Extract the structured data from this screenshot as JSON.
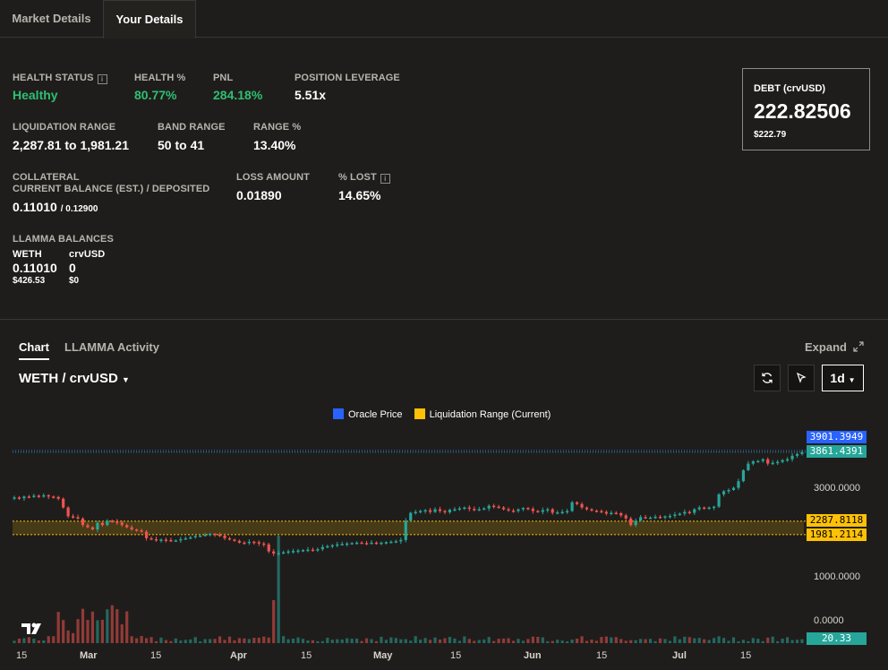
{
  "tabs": [
    "Market Details",
    "Your Details"
  ],
  "details": {
    "health_status_label": "HEALTH STATUS",
    "health_status": "Healthy",
    "health_pct_label": "HEALTH %",
    "health_pct": "80.77%",
    "pnl_label": "PNL",
    "pnl": "284.18%",
    "leverage_label": "POSITION LEVERAGE",
    "leverage": "5.51x",
    "liq_range_label": "LIQUIDATION RANGE",
    "liq_range": "2,287.81 to 1,981.21",
    "band_range_label": "BAND RANGE",
    "band_range": "50 to 41",
    "range_pct_label": "RANGE %",
    "range_pct": "13.40%",
    "collateral_label": "COLLATERAL",
    "collateral_sub_label": "CURRENT BALANCE (EST.) / DEPOSITED",
    "collateral_current": "0.11010",
    "collateral_deposited": "/ 0.12900",
    "loss_amount_label": "LOSS AMOUNT",
    "loss_amount": "0.01890",
    "pct_lost_label": "% LOST",
    "pct_lost": "14.65%",
    "llamma_label": "LLAMMA BALANCES",
    "weth_label": "WETH",
    "weth_value": "0.11010",
    "weth_usd": "$426.53",
    "crvusd_label": "crvUSD",
    "crvusd_value": "0",
    "crvusd_usd": "$0",
    "info_icon": "i"
  },
  "debt": {
    "label": "DEBT (crvUSD)",
    "value": "222.82506",
    "usd": "$222.79"
  },
  "chart_tabs": [
    "Chart",
    "LLAMMA Activity"
  ],
  "expand_label": "Expand",
  "pair_label": "WETH / crvUSD",
  "timeframe": "1d",
  "icons": {
    "refresh": "refresh-icon",
    "cursor": "cursor-icon",
    "expand": "expand-icon",
    "dropdown": "chevron-down-icon"
  },
  "colors": {
    "up": "#26a69a",
    "down": "#ef5350",
    "oracle": "#2962ff",
    "liquidation": "#ffc107",
    "green": "#2fbf71"
  },
  "chart_data": {
    "type": "candlestick",
    "legend": [
      "Oracle Price",
      "Liquidation Range (Current)"
    ],
    "price_labels": {
      "oracle_high": "3901.3949",
      "last_price": "3861.4391",
      "liq_upper": "2287.8118",
      "liq_lower": "1981.2114",
      "volume": "20.33"
    },
    "y_ticks": [
      "3000.0000",
      "1000.0000",
      "0.0000"
    ],
    "x_ticks": [
      "15",
      "Mar",
      "15",
      "Apr",
      "15",
      "May",
      "15",
      "Jun",
      "15",
      "Jul",
      "15"
    ],
    "liquidation_range": [
      1981.2114,
      2287.8118
    ],
    "oracle_price": 3901.3949,
    "last_price": 3861.4391,
    "close_series": [
      2830,
      2810,
      2850,
      2840,
      2870,
      2860,
      2880,
      2850,
      2840,
      2800,
      2600,
      2400,
      2380,
      2350,
      2200,
      2150,
      2100,
      2250,
      2200,
      2300,
      2280,
      2260,
      2200,
      2150,
      2100,
      2080,
      2050,
      1900,
      1880,
      1850,
      1870,
      1860,
      1840,
      1850,
      1880,
      1900,
      1920,
      1950,
      1960,
      1980,
      2000,
      1980,
      1960,
      1900,
      1870,
      1840,
      1800,
      1790,
      1820,
      1810,
      1780,
      1760,
      1600,
      1550,
      1560,
      1580,
      1600,
      1610,
      1620,
      1630,
      1640,
      1620,
      1650,
      1700,
      1720,
      1740,
      1760,
      1770,
      1780,
      1790,
      1800,
      1790,
      1780,
      1800,
      1790,
      1800,
      1810,
      1820,
      1830,
      1860,
      2300,
      2480,
      2500,
      2520,
      2540,
      2500,
      2560,
      2520,
      2490,
      2550,
      2560,
      2580,
      2600,
      2570,
      2550,
      2560,
      2580,
      2640,
      2620,
      2600,
      2560,
      2530,
      2520,
      2560,
      2590,
      2570,
      2520,
      2500,
      2540,
      2560,
      2480,
      2490,
      2500,
      2520,
      2720,
      2680,
      2600,
      2560,
      2530,
      2520,
      2500,
      2460,
      2480,
      2470,
      2420,
      2350,
      2200,
      2300,
      2380,
      2360,
      2370,
      2390,
      2380,
      2400,
      2410,
      2440,
      2460,
      2500,
      2480,
      2560,
      2600,
      2590,
      2600,
      2620,
      2900,
      2970,
      3000,
      3050,
      3200,
      3450,
      3600,
      3650,
      3660,
      3700,
      3600,
      3620,
      3640,
      3680,
      3700,
      3780,
      3820,
      3861
    ]
  }
}
